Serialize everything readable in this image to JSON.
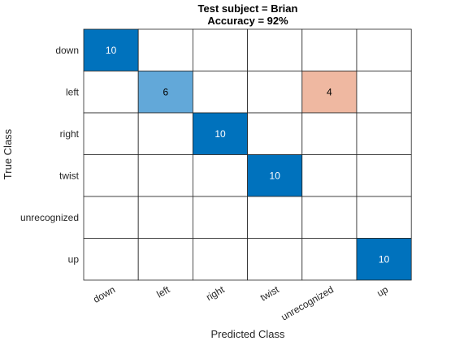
{
  "chart_data": {
    "type": "heatmap",
    "title": [
      "Test subject = Brian",
      "Accuracy = 92%"
    ],
    "xlabel": "Predicted Class",
    "ylabel": "True Class",
    "x_categories": [
      "down",
      "left",
      "right",
      "twist",
      "unrecognized",
      "up"
    ],
    "y_categories": [
      "down",
      "left",
      "right",
      "twist",
      "unrecognized",
      "up"
    ],
    "matrix": [
      [
        10,
        0,
        0,
        0,
        0,
        0
      ],
      [
        0,
        6,
        0,
        0,
        4,
        0
      ],
      [
        0,
        0,
        10,
        0,
        0,
        0
      ],
      [
        0,
        0,
        0,
        10,
        0,
        0
      ],
      [
        0,
        0,
        0,
        0,
        0,
        0
      ],
      [
        0,
        0,
        0,
        0,
        0,
        10
      ]
    ],
    "colors": {
      "diagonal_high": "#0072BD",
      "diagonal_mid": "#62A8D9",
      "offdiagonal": "#EFB8A1",
      "empty": "#FFFFFF",
      "grid": "#262626"
    }
  }
}
